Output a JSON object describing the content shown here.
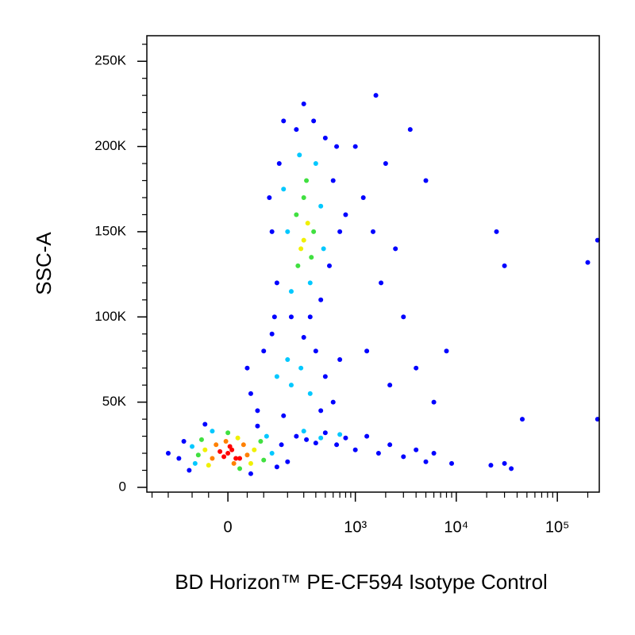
{
  "chart_data": {
    "type": "scatter",
    "xlabel": "BD Horizon™ PE-CF594 Isotype Control",
    "ylabel": "SSC-A",
    "xscale": "biexponential",
    "xlim": [
      -340,
      260000
    ],
    "xticks": [
      0,
      {
        "value": 1000,
        "label": "10³"
      },
      {
        "value": 10000,
        "label": "10⁴"
      },
      {
        "value": 100000,
        "label": "10⁵"
      }
    ],
    "xminorticks": [
      -300,
      -200,
      -100,
      -50,
      50,
      100,
      200,
      300,
      400,
      500,
      600,
      700,
      800,
      900,
      2000,
      3000,
      4000,
      5000,
      6000,
      7000,
      8000,
      9000,
      20000,
      30000,
      40000,
      50000,
      60000,
      70000,
      80000,
      90000,
      200000
    ],
    "ylim": [
      -2800,
      265000
    ],
    "yticks": [
      0,
      {
        "value": 50000,
        "label": "50K"
      },
      {
        "value": 100000,
        "label": "100K"
      },
      {
        "value": 150000,
        "label": "150K"
      },
      {
        "value": 200000,
        "label": "200K"
      },
      {
        "value": 250000,
        "label": "250K"
      }
    ],
    "yminorticks": [
      10000,
      20000,
      30000,
      40000,
      60000,
      70000,
      80000,
      90000,
      110000,
      120000,
      130000,
      140000,
      160000,
      170000,
      180000,
      190000,
      210000,
      220000,
      230000,
      240000,
      260000
    ],
    "series": [
      {
        "color": "#0000ff",
        "x": [
          -150,
          -130,
          170,
          150,
          -110,
          -60,
          80,
          200,
          -200,
          60,
          250,
          320,
          400,
          500,
          650,
          800,
          1000,
          1300,
          1700,
          2200,
          3000,
          4000,
          5000,
          6000,
          9000,
          22000,
          35000,
          60,
          100,
          80,
          130,
          400,
          500,
          600,
          450,
          300,
          180,
          700,
          50,
          130,
          150,
          160,
          600,
          550,
          500,
          380,
          250,
          120,
          700,
          220,
          350,
          800,
          450,
          140,
          650,
          300,
          180,
          1000,
          1200,
          1500,
          2000,
          1800,
          2500,
          3000,
          1300,
          2200,
          4000,
          3500,
          5000,
          1600,
          6000,
          8000,
          30000,
          25000,
          250000,
          250000,
          200000,
          45000,
          30000
        ],
        "values": [
          17000,
          27000,
          25000,
          12000,
          10000,
          37000,
          36000,
          15000,
          20000,
          8000,
          30000,
          28000,
          26000,
          32000,
          25000,
          29000,
          22000,
          30000,
          20000,
          25000,
          18000,
          22000,
          15000,
          20000,
          14000,
          13000,
          11000,
          55000,
          80000,
          45000,
          90000,
          80000,
          65000,
          50000,
          45000,
          88000,
          42000,
          75000,
          70000,
          150000,
          120000,
          190000,
          180000,
          130000,
          205000,
          215000,
          210000,
          170000,
          150000,
          100000,
          100000,
          160000,
          110000,
          100000,
          200000,
          225000,
          215000,
          200000,
          170000,
          150000,
          190000,
          120000,
          140000,
          100000,
          80000,
          60000,
          70000,
          210000,
          180000,
          230000,
          50000,
          80000,
          130000,
          150000,
          145000,
          40000,
          132000,
          40000,
          14000
        ]
      },
      {
        "color": "#00c8ff",
        "x": [
          -100,
          130,
          -90,
          110,
          -40,
          300,
          450,
          700,
          200,
          450,
          220,
          400,
          270,
          480,
          350,
          180,
          150,
          220,
          280,
          200,
          350
        ],
        "values": [
          24000,
          20000,
          14000,
          30000,
          33000,
          33000,
          29000,
          31000,
          150000,
          165000,
          115000,
          190000,
          195000,
          140000,
          120000,
          175000,
          65000,
          60000,
          70000,
          75000,
          55000
        ]
      },
      {
        "color": "#40e040",
        "x": [
          -80,
          90,
          -70,
          100,
          0,
          30,
          250,
          380,
          300,
          260,
          360,
          320
        ],
        "values": [
          19000,
          27000,
          28000,
          16000,
          32000,
          11000,
          160000,
          150000,
          170000,
          130000,
          135000,
          180000
        ]
      },
      {
        "color": "#f0f000",
        "x": [
          -60,
          70,
          25,
          -50,
          60,
          300,
          330,
          280
        ],
        "values": [
          22000,
          22000,
          29000,
          13000,
          14000,
          145000,
          155000,
          140000
        ]
      },
      {
        "color": "#ff8000",
        "x": [
          -30,
          40,
          -40,
          50,
          15,
          -5
        ],
        "values": [
          25000,
          25000,
          17000,
          19000,
          14000,
          27000
        ]
      },
      {
        "color": "#ff0000",
        "x": [
          0,
          10,
          -10,
          20,
          5,
          -20,
          30
        ],
        "values": [
          20000,
          22000,
          18000,
          17000,
          24000,
          21000,
          17000
        ]
      }
    ]
  }
}
